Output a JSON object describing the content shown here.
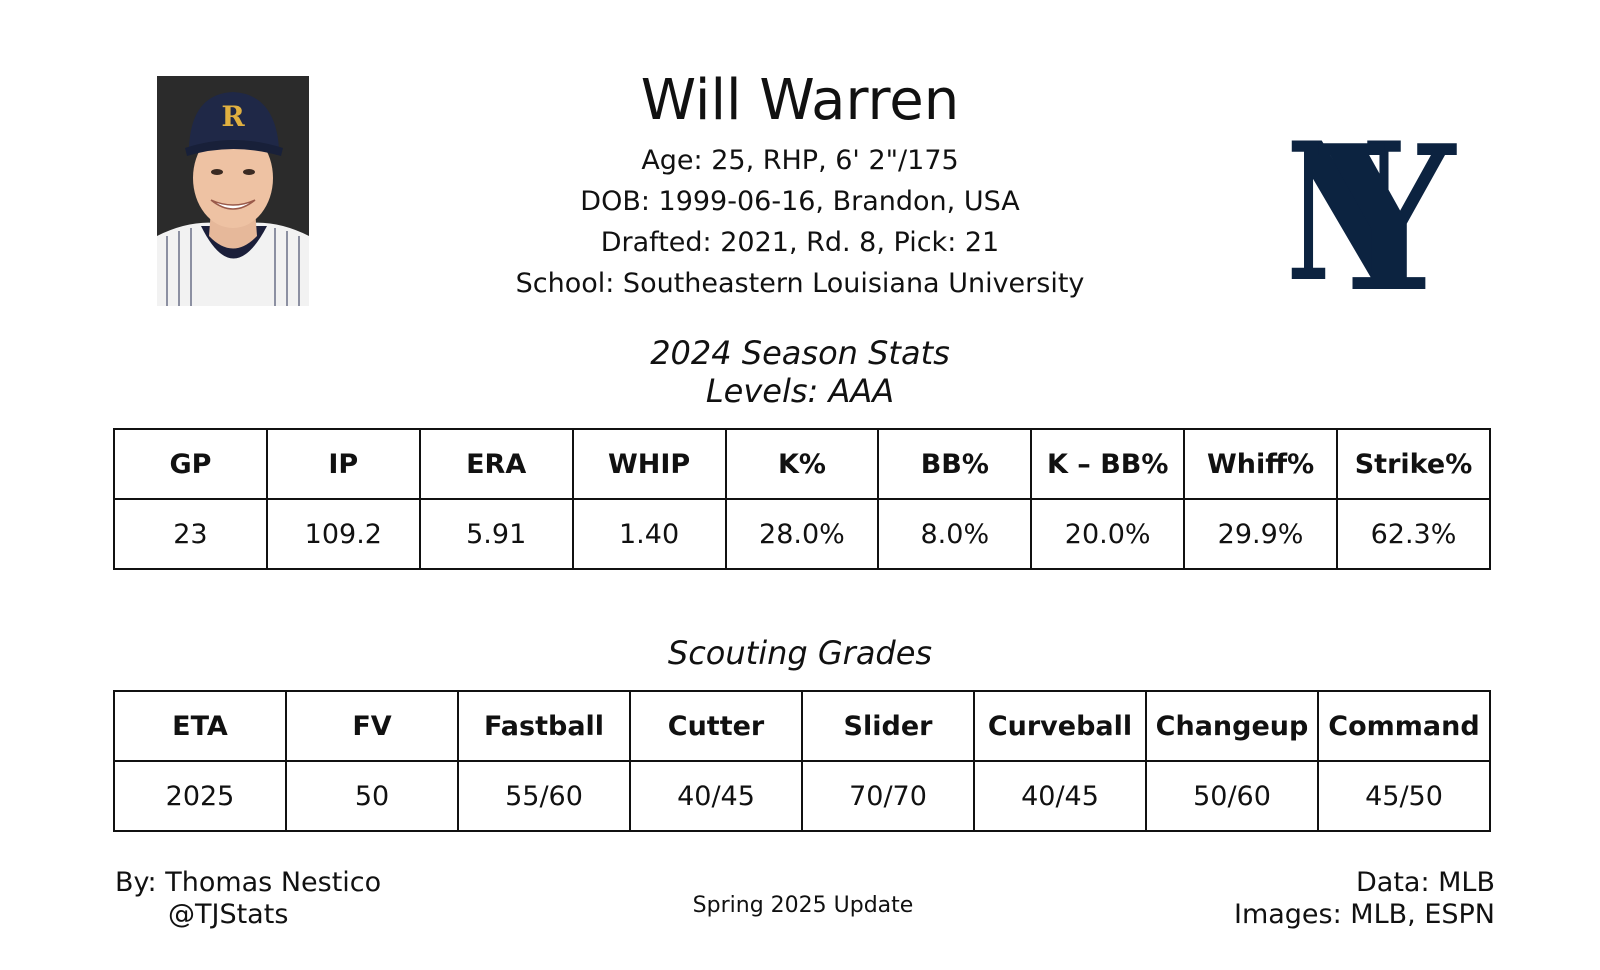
{
  "player": {
    "name": "Will Warren",
    "age_line": "Age: 25, RHP, 6' 2\"/175",
    "dob_line": "DOB: 1999-06-16, Brandon, USA",
    "draft_line": "Drafted: 2021, Rd. 8, Pick: 21",
    "school_line": "School: Southeastern Louisiana University"
  },
  "season": {
    "title": "2024 Season Stats",
    "levels": "Levels: AAA",
    "headers": [
      "GP",
      "IP",
      "ERA",
      "WHIP",
      "K%",
      "BB%",
      "K – BB%",
      "Whiff%",
      "Strike%"
    ],
    "values": [
      "23",
      "109.2",
      "5.91",
      "1.40",
      "28.0%",
      "8.0%",
      "20.0%",
      "29.9%",
      "62.3%"
    ]
  },
  "scouting": {
    "title": "Scouting Grades",
    "headers": [
      "ETA",
      "FV",
      "Fastball",
      "Cutter",
      "Slider",
      "Curveball",
      "Changeup",
      "Command"
    ],
    "values": [
      "2025",
      "50",
      "55/60",
      "40/45",
      "70/70",
      "40/45",
      "50/60",
      "45/50"
    ]
  },
  "footer": {
    "author": "By: Thomas Nestico",
    "handle": "@TJStats",
    "update": "Spring 2025 Update",
    "data_source": "Data: MLB",
    "image_source": "Images: MLB, ESPN"
  },
  "colors": {
    "team_navy": "#0c2340",
    "photo_bg": "#2a2a2a"
  },
  "icons": {
    "team_logo": "ny-logo-icon",
    "player_photo": "player-headshot"
  }
}
